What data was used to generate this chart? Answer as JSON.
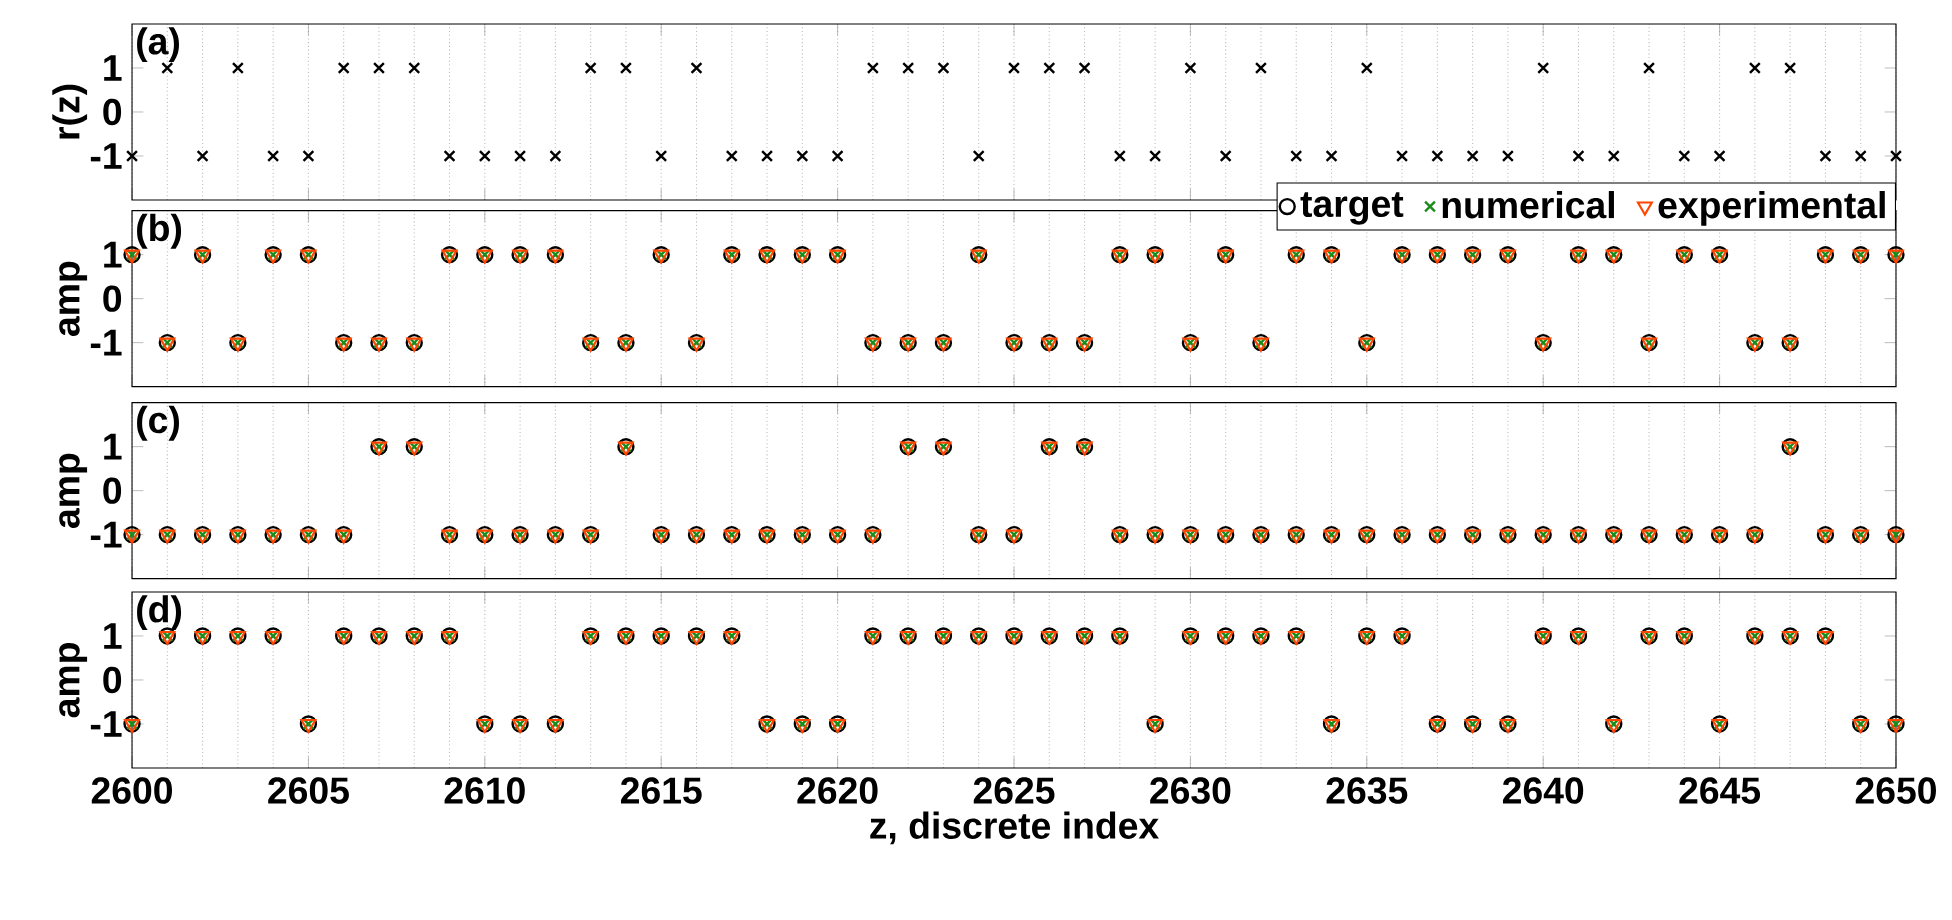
{
  "chart_data": [
    {
      "type": "scatter",
      "ylabel": "r(z)",
      "annotations": [
        "(a)"
      ],
      "xlim": [
        2600,
        2650
      ],
      "ylim": [
        -2,
        2
      ],
      "xticks": [
        2600,
        2605,
        2610,
        2615,
        2620,
        2625,
        2630,
        2635,
        2640,
        2645,
        2650
      ],
      "yticks": [
        -1,
        0,
        1
      ],
      "grid": "x",
      "tick_labels": "y",
      "x": [
        2600,
        2601,
        2602,
        2603,
        2604,
        2605,
        2606,
        2607,
        2608,
        2609,
        2610,
        2611,
        2612,
        2613,
        2614,
        2615,
        2616,
        2617,
        2618,
        2619,
        2620,
        2621,
        2622,
        2623,
        2624,
        2625,
        2626,
        2627,
        2628,
        2629,
        2630,
        2631,
        2632,
        2633,
        2634,
        2635,
        2636,
        2637,
        2638,
        2639,
        2640,
        2641,
        2642,
        2643,
        2644,
        2645,
        2646,
        2647,
        2648,
        2649,
        2650
      ],
      "series": [
        {
          "color": "#000000",
          "marker": "cross",
          "values": [
            -1,
            1,
            -1,
            1,
            -1,
            -1,
            1,
            1,
            1,
            -1,
            -1,
            -1,
            -1,
            1,
            1,
            -1,
            1,
            -1,
            -1,
            -1,
            -1,
            1,
            1,
            1,
            -1,
            1,
            1,
            1,
            -1,
            -1,
            1,
            -1,
            1,
            -1,
            -1,
            1,
            -1,
            -1,
            -1,
            -1,
            1,
            -1,
            -1,
            1,
            -1,
            -1,
            1,
            1,
            -1,
            -1,
            -1
          ]
        }
      ]
    },
    {
      "type": "scatter",
      "ylabel": "amp",
      "annotations": [
        "(b)"
      ],
      "xlim": [
        2600,
        2650
      ],
      "ylim": [
        -2,
        2
      ],
      "xticks": [
        2600,
        2605,
        2610,
        2615,
        2620,
        2625,
        2630,
        2635,
        2640,
        2645,
        2650
      ],
      "yticks": [
        -1,
        0,
        1
      ],
      "grid": "x",
      "tick_labels": "y",
      "legend": "top right",
      "x": [
        2600,
        2601,
        2602,
        2603,
        2604,
        2605,
        2606,
        2607,
        2608,
        2609,
        2610,
        2611,
        2612,
        2613,
        2614,
        2615,
        2616,
        2617,
        2618,
        2619,
        2620,
        2621,
        2622,
        2623,
        2624,
        2625,
        2626,
        2627,
        2628,
        2629,
        2630,
        2631,
        2632,
        2633,
        2634,
        2635,
        2636,
        2637,
        2638,
        2639,
        2640,
        2641,
        2642,
        2643,
        2644,
        2645,
        2646,
        2647,
        2648,
        2649,
        2650
      ],
      "series": [
        {
          "name": "target",
          "color": "#000000",
          "marker": "circle",
          "values": [
            1,
            -1,
            1,
            -1,
            1,
            1,
            -1,
            -1,
            -1,
            1,
            1,
            1,
            1,
            -1,
            -1,
            1,
            -1,
            1,
            1,
            1,
            1,
            -1,
            -1,
            -1,
            1,
            -1,
            -1,
            -1,
            1,
            1,
            -1,
            1,
            -1,
            1,
            1,
            -1,
            1,
            1,
            1,
            1,
            -1,
            1,
            1,
            -1,
            1,
            1,
            -1,
            -1,
            1,
            1,
            1
          ]
        },
        {
          "name": "numerical",
          "color": "#1a8c1a",
          "marker": "cross",
          "values": [
            1,
            -1,
            1,
            -1,
            1,
            1,
            -1,
            -1,
            -1,
            1,
            1,
            1,
            1,
            -1,
            -1,
            1,
            -1,
            1,
            1,
            1,
            1,
            -1,
            -1,
            -1,
            1,
            -1,
            -1,
            -1,
            1,
            1,
            -1,
            1,
            -1,
            1,
            1,
            -1,
            1,
            1,
            1,
            1,
            -1,
            1,
            1,
            -1,
            1,
            1,
            -1,
            -1,
            1,
            1,
            1
          ]
        },
        {
          "name": "experimental",
          "color": "#ff4500",
          "marker": "triangle",
          "values": [
            1,
            -1,
            1,
            -1,
            1,
            1,
            -1,
            -1,
            -1,
            1,
            1,
            1,
            1,
            -1,
            -1,
            1,
            -1,
            1,
            1,
            1,
            1,
            -1,
            -1,
            -1,
            1,
            -1,
            -1,
            -1,
            1,
            1,
            -1,
            1,
            -1,
            1,
            1,
            -1,
            1,
            1,
            1,
            1,
            -1,
            1,
            1,
            -1,
            1,
            1,
            -1,
            -1,
            1,
            1,
            1
          ]
        }
      ]
    },
    {
      "type": "scatter",
      "ylabel": "amp",
      "annotations": [
        "(c)"
      ],
      "xlim": [
        2600,
        2650
      ],
      "ylim": [
        -2,
        2
      ],
      "xticks": [
        2600,
        2605,
        2610,
        2615,
        2620,
        2625,
        2630,
        2635,
        2640,
        2645,
        2650
      ],
      "yticks": [
        -1,
        0,
        1
      ],
      "grid": "x",
      "tick_labels": "y",
      "x": [
        2600,
        2601,
        2602,
        2603,
        2604,
        2605,
        2606,
        2607,
        2608,
        2609,
        2610,
        2611,
        2612,
        2613,
        2614,
        2615,
        2616,
        2617,
        2618,
        2619,
        2620,
        2621,
        2622,
        2623,
        2624,
        2625,
        2626,
        2627,
        2628,
        2629,
        2630,
        2631,
        2632,
        2633,
        2634,
        2635,
        2636,
        2637,
        2638,
        2639,
        2640,
        2641,
        2642,
        2643,
        2644,
        2645,
        2646,
        2647,
        2648,
        2649,
        2650
      ],
      "series": [
        {
          "color": "#000000",
          "marker": "circle",
          "values": [
            -1,
            -1,
            -1,
            -1,
            -1,
            -1,
            -1,
            1,
            1,
            -1,
            -1,
            -1,
            -1,
            -1,
            1,
            -1,
            -1,
            -1,
            -1,
            -1,
            -1,
            -1,
            1,
            1,
            -1,
            -1,
            1,
            1,
            -1,
            -1,
            -1,
            -1,
            -1,
            -1,
            -1,
            -1,
            -1,
            -1,
            -1,
            -1,
            -1,
            -1,
            -1,
            -1,
            -1,
            -1,
            -1,
            1,
            -1,
            -1,
            -1
          ]
        },
        {
          "color": "#1a8c1a",
          "marker": "cross",
          "values": [
            -1,
            -1,
            -1,
            -1,
            -1,
            -1,
            -1,
            1,
            1,
            -1,
            -1,
            -1,
            -1,
            -1,
            1,
            -1,
            -1,
            -1,
            -1,
            -1,
            -1,
            -1,
            1,
            1,
            -1,
            -1,
            1,
            1,
            -1,
            -1,
            -1,
            -1,
            -1,
            -1,
            -1,
            -1,
            -1,
            -1,
            -1,
            -1,
            -1,
            -1,
            -1,
            -1,
            -1,
            -1,
            -1,
            1,
            -1,
            -1,
            -1
          ]
        },
        {
          "color": "#ff4500",
          "marker": "triangle",
          "values": [
            -1,
            -1,
            -1,
            -1,
            -1,
            -1,
            -1,
            1,
            1,
            -1,
            -1,
            -1,
            -1,
            -1,
            1,
            -1,
            -1,
            -1,
            -1,
            -1,
            -1,
            -1,
            1,
            1,
            -1,
            -1,
            1,
            1,
            -1,
            -1,
            -1,
            -1,
            -1,
            -1,
            -1,
            -1,
            -1,
            -1,
            -1,
            -1,
            -1,
            -1,
            -1,
            -1,
            -1,
            -1,
            -1,
            1,
            -1,
            -1,
            -1
          ]
        }
      ]
    },
    {
      "type": "scatter",
      "ylabel": "amp",
      "xlabel": "z, discrete index",
      "annotations": [
        "(d)"
      ],
      "xlim": [
        2600,
        2650
      ],
      "ylim": [
        -2,
        2
      ],
      "xticks": [
        2600,
        2605,
        2610,
        2615,
        2620,
        2625,
        2630,
        2635,
        2640,
        2645,
        2650
      ],
      "yticks": [
        -1,
        0,
        1
      ],
      "grid": "x",
      "x": [
        2600,
        2601,
        2602,
        2603,
        2604,
        2605,
        2606,
        2607,
        2608,
        2609,
        2610,
        2611,
        2612,
        2613,
        2614,
        2615,
        2616,
        2617,
        2618,
        2619,
        2620,
        2621,
        2622,
        2623,
        2624,
        2625,
        2626,
        2627,
        2628,
        2629,
        2630,
        2631,
        2632,
        2633,
        2634,
        2635,
        2636,
        2637,
        2638,
        2639,
        2640,
        2641,
        2642,
        2643,
        2644,
        2645,
        2646,
        2647,
        2648,
        2649,
        2650
      ],
      "series": [
        {
          "color": "#000000",
          "marker": "circle",
          "values": [
            -1,
            1,
            1,
            1,
            1,
            -1,
            1,
            1,
            1,
            1,
            -1,
            -1,
            -1,
            1,
            1,
            1,
            1,
            1,
            -1,
            -1,
            -1,
            1,
            1,
            1,
            1,
            1,
            1,
            1,
            1,
            -1,
            1,
            1,
            1,
            1,
            -1,
            1,
            1,
            -1,
            -1,
            -1,
            1,
            1,
            -1,
            1,
            1,
            -1,
            1,
            1,
            1,
            -1,
            -1
          ]
        },
        {
          "color": "#1a8c1a",
          "marker": "cross",
          "values": [
            -1,
            1,
            1,
            1,
            1,
            -1,
            1,
            1,
            1,
            1,
            -1,
            -1,
            -1,
            1,
            1,
            1,
            1,
            1,
            -1,
            -1,
            -1,
            1,
            1,
            1,
            1,
            1,
            1,
            1,
            1,
            -1,
            1,
            1,
            1,
            1,
            -1,
            1,
            1,
            -1,
            -1,
            -1,
            1,
            1,
            -1,
            1,
            1,
            -1,
            1,
            1,
            1,
            -1,
            -1
          ]
        },
        {
          "color": "#ff4500",
          "marker": "triangle",
          "values": [
            -1,
            1,
            1,
            1,
            1,
            -1,
            1,
            1,
            1,
            1,
            -1,
            -1,
            -1,
            1,
            1,
            1,
            1,
            1,
            -1,
            -1,
            -1,
            1,
            1,
            1,
            1,
            1,
            1,
            1,
            1,
            -1,
            1,
            1,
            1,
            1,
            -1,
            1,
            1,
            -1,
            -1,
            -1,
            1,
            1,
            -1,
            1,
            1,
            -1,
            1,
            1,
            1,
            -1,
            -1
          ]
        }
      ]
    }
  ]
}
